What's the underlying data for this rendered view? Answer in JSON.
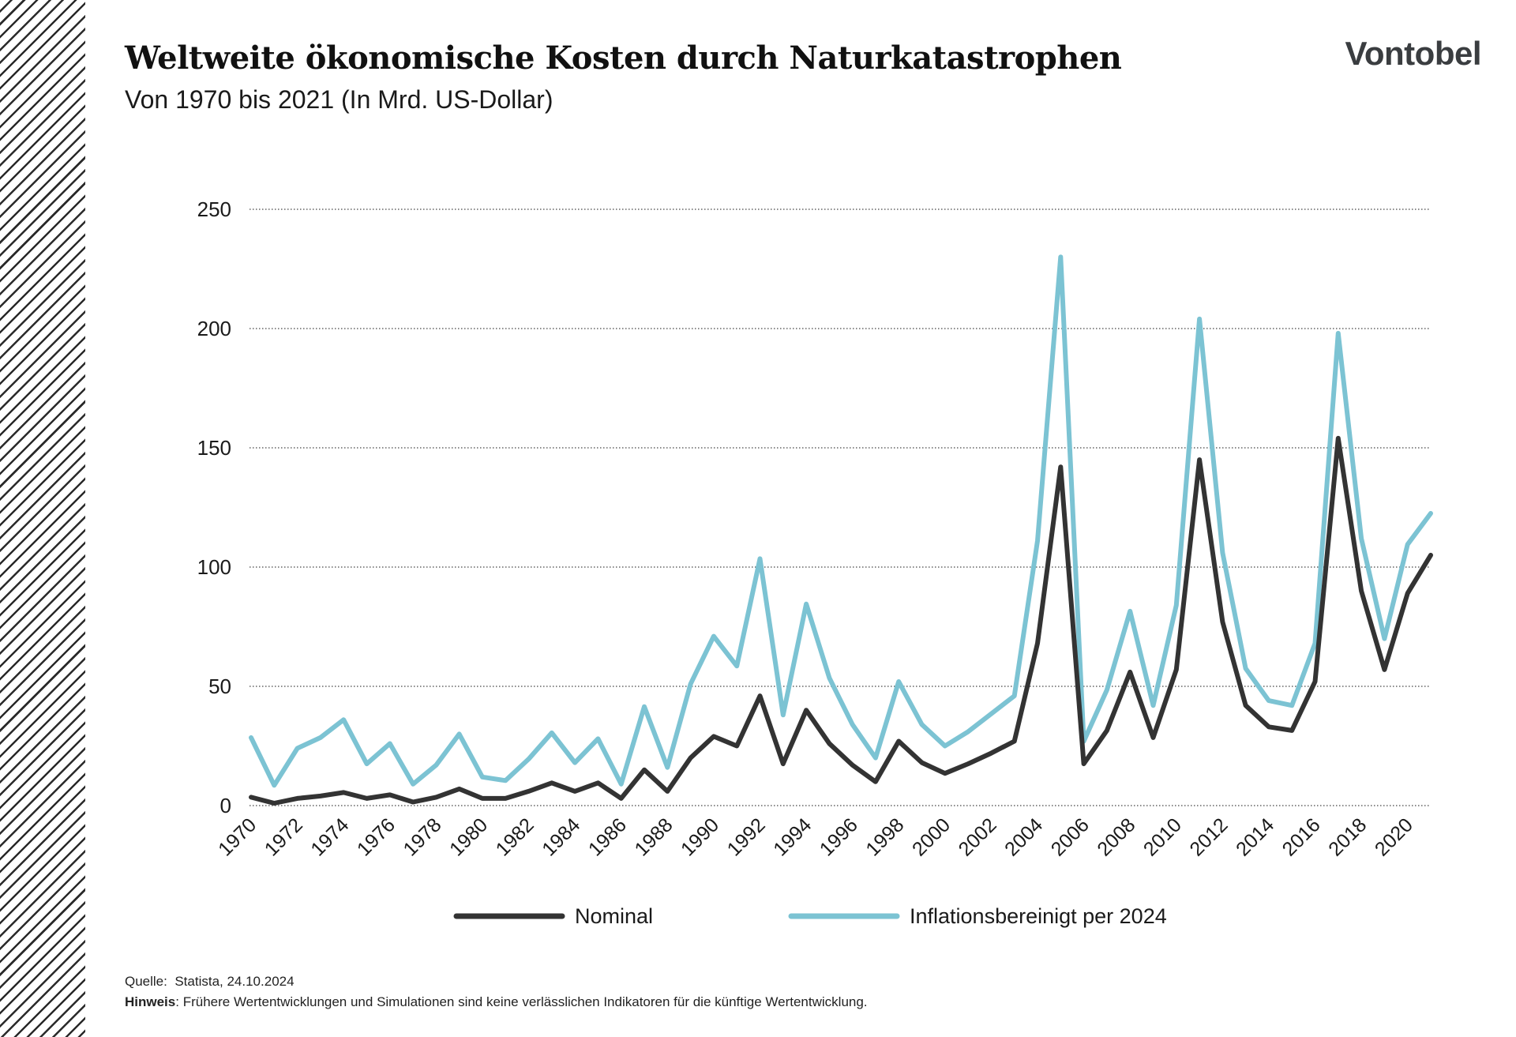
{
  "header": {
    "title": "Weltweite ökonomische Kosten durch Naturkatastrophen",
    "subtitle": "Von 1970 bis 2021 (In Mrd. US-Dollar)",
    "brand": "Vontobel"
  },
  "footer": {
    "source_label": "Quelle:",
    "source_text": "Statista, 24.10.2024",
    "note_label": "Hinweis",
    "note_text": ": Frühere Wertentwicklungen und Simulationen sind keine verlässlichen Indikatoren für die künftige Wertentwicklung."
  },
  "colors": {
    "nominal": "#333333",
    "inflation": "#7cc3d3",
    "grid": "#444444"
  },
  "chart_data": {
    "type": "line",
    "title": "Weltweite ökonomische Kosten durch Naturkatastrophen",
    "subtitle": "Von 1970 bis 2021 (In Mrd. US-Dollar)",
    "xlabel": "",
    "ylabel": "",
    "ylim": [
      0,
      250
    ],
    "yticks": [
      0,
      50,
      100,
      150,
      200,
      250
    ],
    "grid": true,
    "legend": "bottom",
    "x": [
      1970,
      1971,
      1972,
      1973,
      1974,
      1975,
      1976,
      1977,
      1978,
      1979,
      1980,
      1981,
      1982,
      1983,
      1984,
      1985,
      1986,
      1987,
      1988,
      1989,
      1990,
      1991,
      1992,
      1993,
      1994,
      1995,
      1996,
      1997,
      1998,
      1999,
      2000,
      2001,
      2002,
      2003,
      2004,
      2005,
      2006,
      2007,
      2008,
      2009,
      2010,
      2011,
      2012,
      2013,
      2014,
      2015,
      2016,
      2017,
      2018,
      2019,
      2020,
      2021
    ],
    "xticks": [
      "1970",
      "1972",
      "1974",
      "1976",
      "1978",
      "1980",
      "1982",
      "1984",
      "1986",
      "1988",
      "1990",
      "1992",
      "1994",
      "1996",
      "1998",
      "2000",
      "2002",
      "2004",
      "2006",
      "2008",
      "2010",
      "2012",
      "2014",
      "2016",
      "2018",
      "2020"
    ],
    "series": [
      {
        "name": "Nominal",
        "color": "#333333",
        "values": [
          3.5,
          1,
          3,
          4,
          5.5,
          3,
          4.5,
          1.5,
          3.5,
          7,
          3,
          3,
          6,
          9.5,
          6,
          9.5,
          3,
          15,
          6,
          20,
          29,
          25,
          46,
          17.5,
          40,
          26,
          17,
          10,
          27,
          18,
          13.5,
          17.5,
          22,
          27,
          68,
          142,
          17.5,
          31.5,
          56,
          28.5,
          57,
          145,
          77,
          42,
          33,
          31.5,
          52,
          154,
          90,
          57,
          89,
          105
        ]
      },
      {
        "name": "Inflationsbereinigt per 2024",
        "color": "#7cc3d3",
        "values": [
          28.5,
          8.5,
          24,
          28.5,
          36,
          17.5,
          26,
          9,
          17,
          30,
          12,
          10.5,
          19.5,
          30.5,
          18,
          28,
          9,
          41.5,
          16,
          51,
          71,
          58.5,
          103.5,
          38,
          84.5,
          53.5,
          34,
          20,
          52,
          34,
          25,
          31,
          38.5,
          46,
          111,
          230,
          27,
          48.5,
          81.5,
          42,
          84,
          204,
          106,
          57.5,
          44,
          42,
          68,
          198,
          112,
          70,
          109.5,
          122.5
        ]
      }
    ]
  }
}
